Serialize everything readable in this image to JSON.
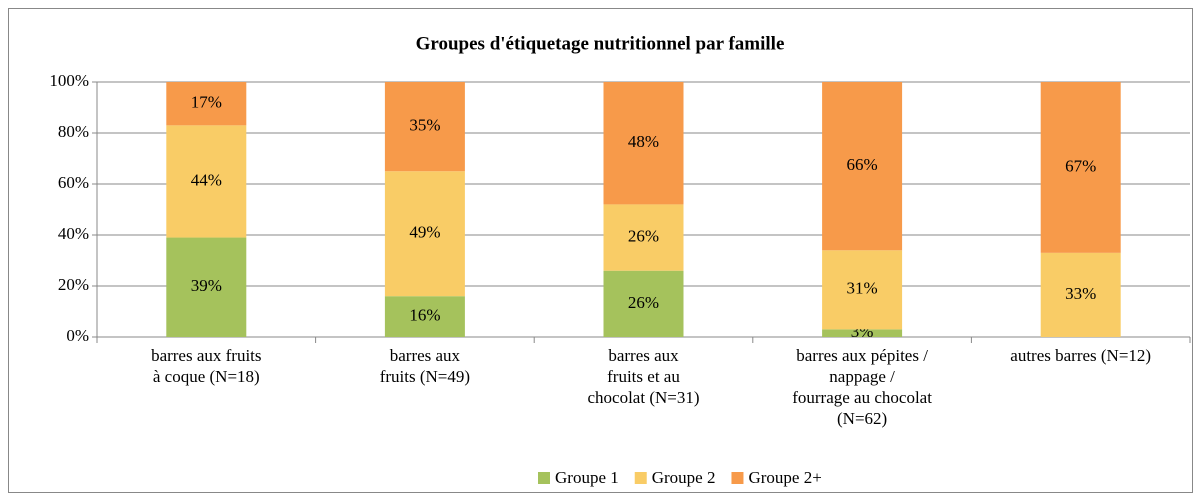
{
  "chart_data": {
    "type": "stacked_bar_percent",
    "title": "Groupes d'étiquetage nutritionnel par famille",
    "categories": [
      [
        "barres aux fruits",
        "à coque (N=18)"
      ],
      [
        "barres aux",
        "fruits (N=49)"
      ],
      [
        "barres aux",
        "fruits et au",
        "chocolat (N=31)"
      ],
      [
        "barres aux pépites /",
        "nappage /",
        "fourrage au chocolat",
        "(N=62)"
      ],
      [
        "autres barres (N=12)"
      ]
    ],
    "series": [
      {
        "name": "Groupe 1",
        "color": "#a5c25c",
        "values": [
          39,
          16,
          26,
          3,
          0
        ],
        "value_labels": [
          "39%",
          "16%",
          "26%",
          "3%",
          null
        ]
      },
      {
        "name": "Groupe 2",
        "color": "#f9cc66",
        "values": [
          44,
          49,
          26,
          31,
          33
        ],
        "value_labels": [
          "44%",
          "49%",
          "26%",
          "31%",
          "33%"
        ]
      },
      {
        "name": "Groupe 2+",
        "color": "#f79a4a",
        "values": [
          17,
          35,
          48,
          66,
          67
        ],
        "value_labels": [
          "17%",
          "35%",
          "48%",
          "66%",
          "67%"
        ]
      }
    ],
    "ylim": [
      0,
      100
    ],
    "yticks": [
      {
        "value": 0,
        "label": "0%"
      },
      {
        "value": 20,
        "label": "20%"
      },
      {
        "value": 40,
        "label": "40%"
      },
      {
        "value": 60,
        "label": "60%"
      },
      {
        "value": 80,
        "label": "80%"
      },
      {
        "value": 100,
        "label": "100%"
      }
    ],
    "grid": true,
    "legend": "bottom"
  }
}
